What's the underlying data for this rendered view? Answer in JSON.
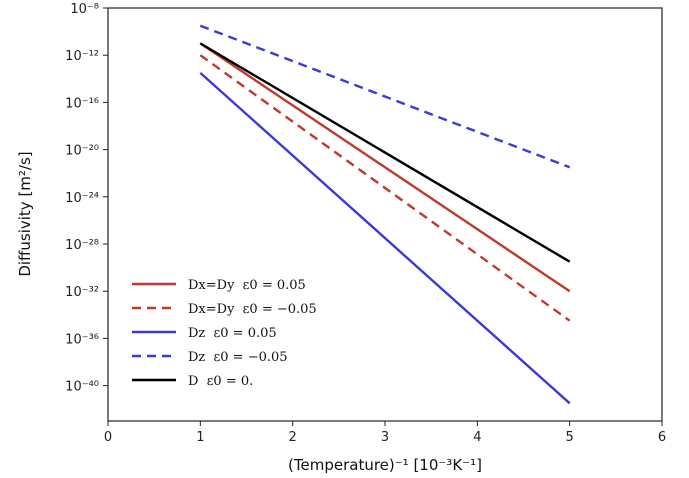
{
  "chart_data": {
    "type": "line",
    "title": "",
    "xlabel": "(Temperature)⁻¹ [10⁻³K⁻¹]",
    "ylabel": "Diffusivity [m²/s]",
    "xlim": [
      0,
      6
    ],
    "ylim_log10": [
      -43,
      -8
    ],
    "yscale": "log",
    "grid": false,
    "legend_placement": "lower-left",
    "x_ticks": [
      "0",
      "1",
      "2",
      "3",
      "4",
      "5",
      "6"
    ],
    "y_ticks": [
      {
        "exp": -8,
        "label": "10⁻⁸"
      },
      {
        "exp": -12,
        "label": "10⁻¹²"
      },
      {
        "exp": -16,
        "label": "10⁻¹⁶"
      },
      {
        "exp": -20,
        "label": "10⁻²⁰"
      },
      {
        "exp": -24,
        "label": "10⁻²⁴"
      },
      {
        "exp": -28,
        "label": "10⁻²⁸"
      },
      {
        "exp": -32,
        "label": "10⁻³²"
      },
      {
        "exp": -36,
        "label": "10⁻³⁶"
      },
      {
        "exp": -40,
        "label": "10⁻⁴⁰"
      }
    ],
    "series": [
      {
        "name": "Dx=Dy  ε0 = 0.05",
        "color": "#c0392b",
        "dash": false,
        "x": [
          1,
          5
        ],
        "log10_y": [
          -11.0,
          -32.0
        ]
      },
      {
        "name": "Dx=Dy  ε0 = −0.05",
        "color": "#c0392b",
        "dash": true,
        "x": [
          1,
          5
        ],
        "log10_y": [
          -12.0,
          -34.5
        ]
      },
      {
        "name": "Dz  ε0 = 0.05",
        "color": "#3a3ad6",
        "dash": false,
        "x": [
          1,
          5
        ],
        "log10_y": [
          -13.5,
          -41.5
        ]
      },
      {
        "name": "Dz  ε0 = −0.05",
        "color": "#3a3ad6",
        "dash": true,
        "x": [
          1,
          5
        ],
        "log10_y": [
          -9.5,
          -21.5
        ]
      },
      {
        "name": "D  ε0 = 0.",
        "color": "#000000",
        "dash": false,
        "x": [
          1,
          5
        ],
        "log10_y": [
          -11.0,
          -29.5
        ]
      }
    ]
  }
}
